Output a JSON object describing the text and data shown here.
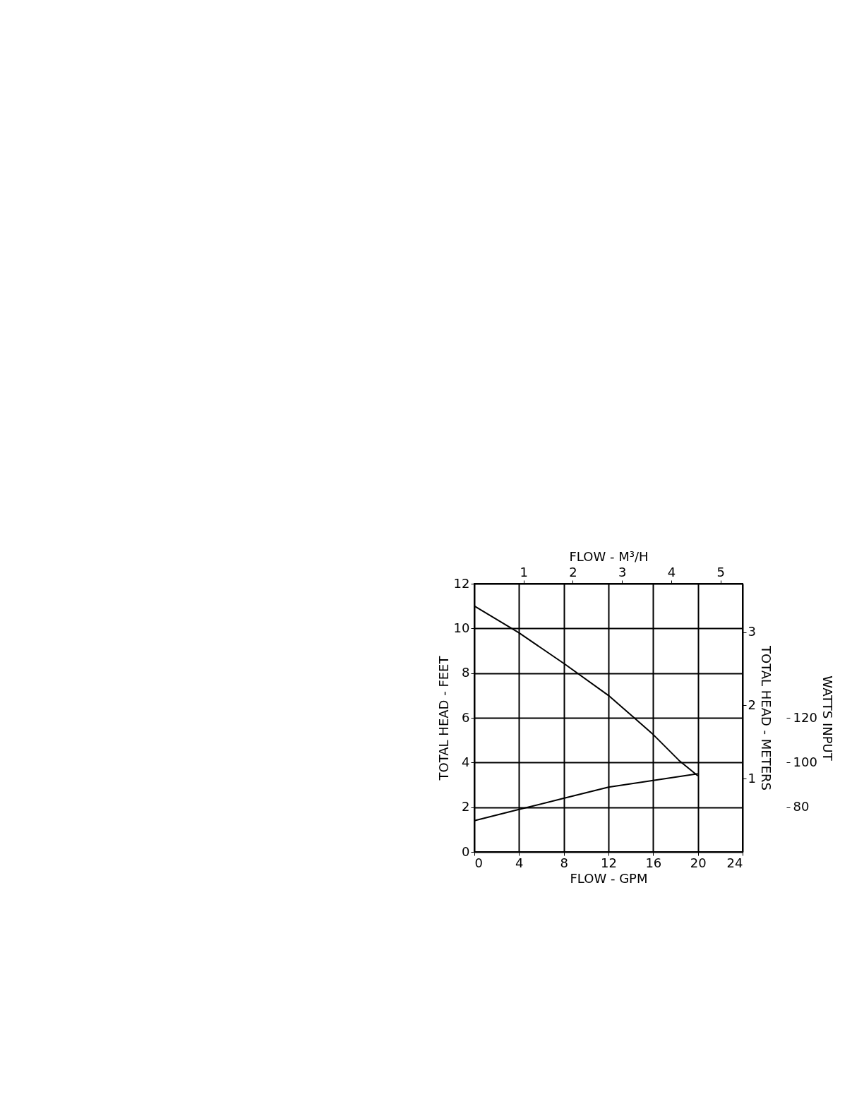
{
  "chart_data": {
    "type": "line",
    "xlabel": "FLOW - GPM",
    "ylabel": "TOTAL HEAD - FEET",
    "y2label": "TOTAL HEAD - METERS",
    "y3label": "WATTS INPUT",
    "x2label": "FLOW - M³/H",
    "x": [
      0,
      4,
      8.1,
      12,
      14.3,
      15.9,
      18.3,
      20
    ],
    "series": [
      {
        "color": "#000000",
        "values": [
          11,
          9.8,
          8.4,
          7,
          6,
          5.3,
          4.1,
          3.4
        ]
      },
      {
        "color": "#000000",
        "axis": "y3",
        "x": [
          0,
          4,
          8,
          12,
          16,
          20
        ],
        "values": [
          74,
          79,
          84,
          89,
          92,
          95
        ]
      }
    ],
    "xlim": [
      0,
      24
    ],
    "xticks": [
      0,
      4,
      8,
      12,
      16,
      20,
      24
    ],
    "ylim": [
      0,
      12
    ],
    "yticks": [
      0,
      2,
      4,
      6,
      8,
      10,
      12
    ],
    "y2lim": [
      0,
      3.66
    ],
    "y2ticks": [
      1,
      2,
      3
    ],
    "y3lim": [
      60,
      180
    ],
    "y3ticks": [
      80,
      100,
      120
    ],
    "x2lim": [
      0,
      5.45
    ],
    "x2ticks": [
      1,
      2,
      3,
      4,
      5
    ],
    "grid": true,
    "marker": "none",
    "line_style": "solid"
  }
}
